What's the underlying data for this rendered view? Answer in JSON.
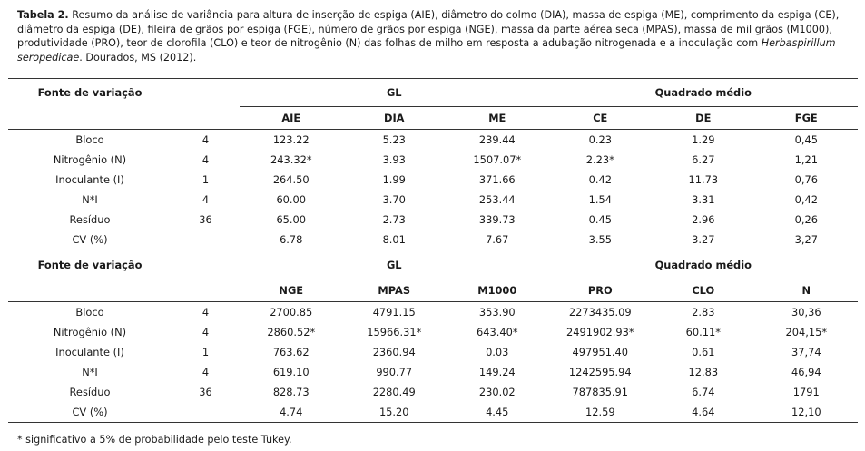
{
  "caption": {
    "label": "Tabela 2.",
    "text": " Resumo da análise de variância para altura de inserção de espiga (AIE), diâmetro do colmo (DIA), massa de espiga (ME), comprimento da espiga (CE), diâmetro da espiga (DE), fileira de grãos por espiga (FGE), número de grãos por espiga (NGE), massa da parte aérea seca (MPAS), massa de mil grãos (M1000), produtividade (PRO), teor de clorofila (CLO) e teor de nitrogênio (N) das folhas de milho em resposta a adubação nitrogenada e a inoculação com ",
    "species": "Herbaspirillum seropedicae",
    "tail": ". Dourados, MS (2012)."
  },
  "header": {
    "fonte": "Fonte de variação",
    "gl": "GL",
    "qm": "Quadrado médio"
  },
  "table1": {
    "columns": [
      "AIE",
      "DIA",
      "ME",
      "CE",
      "DE",
      "FGE"
    ],
    "rows": [
      {
        "source": "Bloco",
        "gl": "4",
        "values": [
          "123.22",
          "5.23",
          "239.44",
          "0.23",
          "1.29",
          "0,45"
        ]
      },
      {
        "source": "Nitrogênio (N)",
        "gl": "4",
        "values": [
          "243.32*",
          "3.93",
          "1507.07*",
          "2.23*",
          "6.27",
          "1,21"
        ]
      },
      {
        "source": "Inoculante (I)",
        "gl": "1",
        "values": [
          "264.50",
          "1.99",
          "371.66",
          "0.42",
          "11.73",
          "0,76"
        ]
      },
      {
        "source": "N*I",
        "gl": "4",
        "values": [
          "60.00",
          "3.70",
          "253.44",
          "1.54",
          "3.31",
          "0,42"
        ]
      },
      {
        "source": "Resíduo",
        "gl": "36",
        "values": [
          "65.00",
          "2.73",
          "339.73",
          "0.45",
          "2.96",
          "0,26"
        ]
      },
      {
        "source": "CV (%)",
        "gl": "",
        "values": [
          "6.78",
          "8.01",
          "7.67",
          "3.55",
          "3.27",
          "3,27"
        ]
      }
    ]
  },
  "table2": {
    "columns": [
      "NGE",
      "MPAS",
      "M1000",
      "PRO",
      "CLO",
      "N"
    ],
    "rows": [
      {
        "source": "Bloco",
        "gl": "4",
        "values": [
          "2700.85",
          "4791.15",
          "353.90",
          "2273435.09",
          "2.83",
          "30,36"
        ]
      },
      {
        "source": "Nitrogênio (N)",
        "gl": "4",
        "values": [
          "2860.52*",
          "15966.31*",
          "643.40*",
          "2491902.93*",
          "60.11*",
          "204,15*"
        ]
      },
      {
        "source": "Inoculante (I)",
        "gl": "1",
        "values": [
          "763.62",
          "2360.94",
          "0.03",
          "497951.40",
          "0.61",
          "37,74"
        ]
      },
      {
        "source": "N*I",
        "gl": "4",
        "values": [
          "619.10",
          "990.77",
          "149.24",
          "1242595.94",
          "12.83",
          "46,94"
        ]
      },
      {
        "source": "Resíduo",
        "gl": "36",
        "values": [
          "828.73",
          "2280.49",
          "230.02",
          "787835.91",
          "6.74",
          "1791"
        ]
      },
      {
        "source": "CV (%)",
        "gl": "",
        "values": [
          "4.74",
          "15.20",
          "4.45",
          "12.59",
          "4.64",
          "12,10"
        ]
      }
    ]
  },
  "footnote": "* significativo a 5% de probabilidade pelo teste Tukey."
}
